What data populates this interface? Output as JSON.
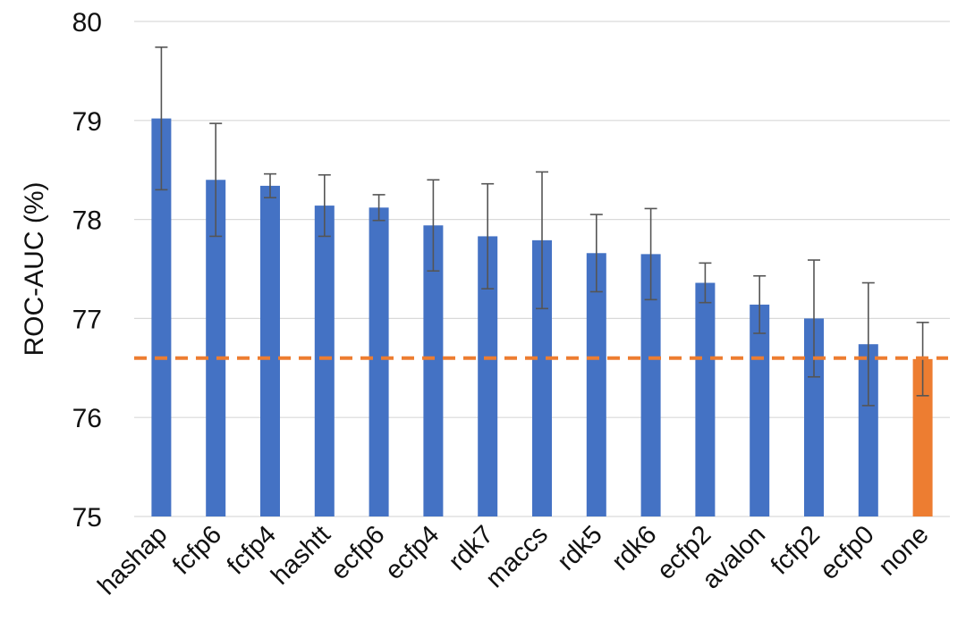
{
  "chart_data": {
    "type": "bar",
    "title": "",
    "xlabel": "",
    "ylabel": "ROC-AUC (%)",
    "ylim": [
      75,
      80
    ],
    "yticks": [
      75,
      76,
      77,
      78,
      79,
      80
    ],
    "grid": true,
    "categories": [
      "hashap",
      "fcfp6",
      "fcfp4",
      "hashtt",
      "ecfp6",
      "ecfp4",
      "rdk7",
      "maccs",
      "rdk5",
      "rdk6",
      "ecfp2",
      "avalon",
      "fcfp2",
      "ecfp0",
      "none"
    ],
    "values": [
      79.02,
      78.4,
      78.34,
      78.14,
      78.12,
      77.94,
      77.83,
      77.79,
      77.66,
      77.65,
      77.36,
      77.14,
      77.0,
      76.74,
      76.59
    ],
    "errors": [
      0.72,
      0.57,
      0.12,
      0.31,
      0.13,
      0.46,
      0.53,
      0.69,
      0.39,
      0.46,
      0.2,
      0.29,
      0.59,
      0.62,
      0.37
    ],
    "bar_colors": [
      "#4472C4",
      "#4472C4",
      "#4472C4",
      "#4472C4",
      "#4472C4",
      "#4472C4",
      "#4472C4",
      "#4472C4",
      "#4472C4",
      "#4472C4",
      "#4472C4",
      "#4472C4",
      "#4472C4",
      "#4472C4",
      "#ED7D31"
    ],
    "reference_line": {
      "value": 76.6,
      "style": "dashed",
      "color": "#ED7D31"
    }
  }
}
